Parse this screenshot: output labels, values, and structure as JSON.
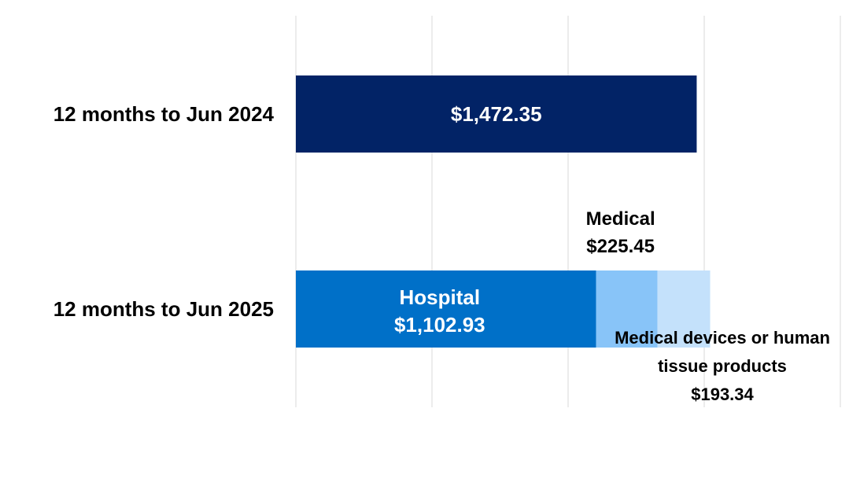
{
  "colors": {
    "background": "#ffffff",
    "gridline": "#d9d9d9",
    "bar_2024": "#022366",
    "hospital": "#0070c8",
    "medical": "#88c4f8",
    "medical_devices": "#c4e1fb"
  },
  "chart_data": {
    "type": "bar",
    "orientation": "horizontal",
    "stacked": true,
    "categories": [
      "12 months to Jun 2024",
      "12 months to Jun 2025"
    ],
    "xlim": [
      0,
      2000
    ],
    "grid": true,
    "series": [
      {
        "name": "",
        "category": "12 months to Jun 2024",
        "value": 1472.35,
        "label": "$1,472.35",
        "color": "#022366"
      },
      {
        "name": "Hospital",
        "category": "12 months to Jun 2025",
        "value": 1102.93,
        "label": "$1,102.93",
        "color": "#0070c8"
      },
      {
        "name": "Medical",
        "category": "12 months to Jun 2025",
        "value": 225.45,
        "label": "$225.45",
        "color": "#88c4f8"
      },
      {
        "name": "Medical devices or human tissue products",
        "name_lines": [
          "Medical devices or human",
          "tissue products"
        ],
        "category": "12 months to Jun 2025",
        "value": 193.34,
        "label": "$193.34",
        "color": "#c4e1fb"
      }
    ]
  }
}
